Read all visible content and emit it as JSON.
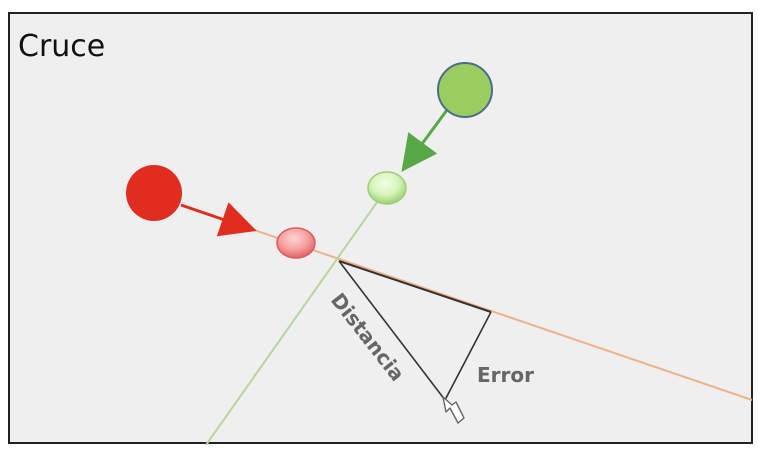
{
  "diagram": {
    "title": "Cruce",
    "labels": {
      "distance": "Distancia",
      "error": "Error"
    },
    "colors": {
      "panel_background": "#efefef",
      "panel_border": "#222222",
      "red_object": "#e12d20",
      "red_ghost": "#f08f8f",
      "green_object": "#9acd5f",
      "green_ghost": "#cbeea9",
      "red_path": "#f0b189",
      "green_path": "#b8d69b",
      "construction_line": "#333333"
    },
    "icons": {
      "cursor": "hollow-arrow-cursor-icon"
    }
  }
}
